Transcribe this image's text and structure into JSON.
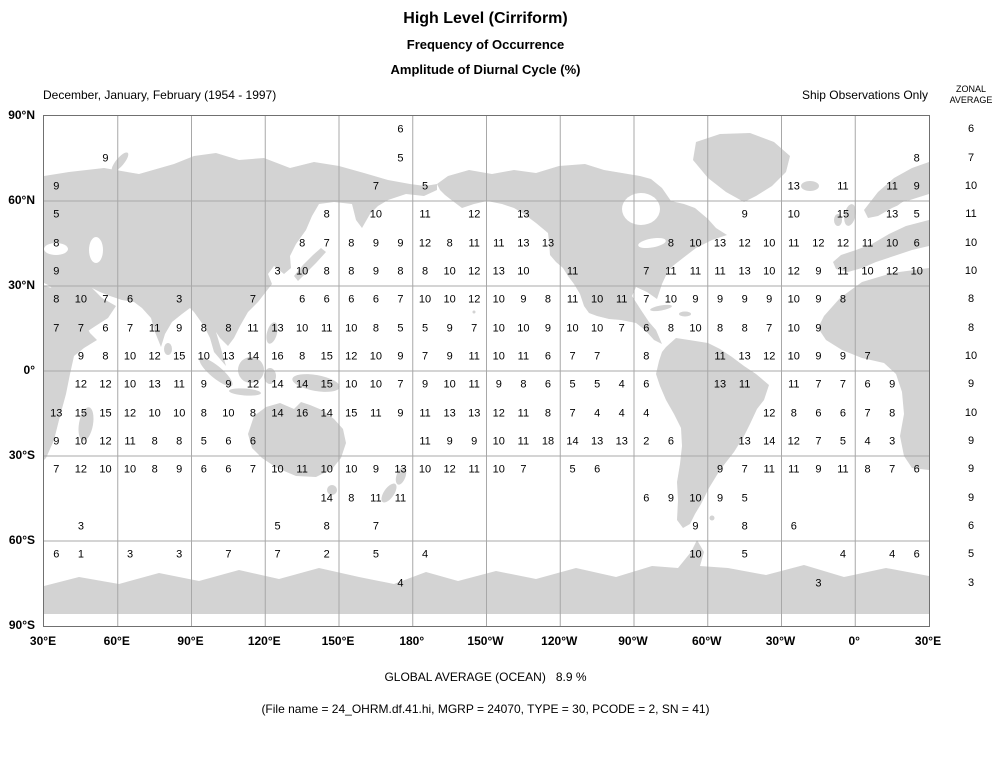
{
  "header": {
    "title": "High Level (Cirriform)",
    "subtitle1": "Frequency of Occurrence",
    "subtitle2": "Amplitude of Diurnal Cycle (%)",
    "season_label": "December, January, February (1954 - 1997)",
    "source_label": "Ship Observations Only",
    "zonal_header_line1": "ZONAL",
    "zonal_header_line2": "AVERAGE"
  },
  "footer": {
    "global_average": "GLOBAL AVERAGE (OCEAN)   8.9 %",
    "file_info": "(File name = 24_OHRM.df.41.hi, MGRP = 24070, TYPE = 30, PCODE = 2, SN = 41)"
  },
  "colors": {
    "land": "#d3d3d3",
    "grid": "#a8a8a8",
    "border": "#707070",
    "text": "#000000"
  },
  "chart_data": {
    "type": "heatmap",
    "title": "High Level (Cirriform) - Amplitude of Diurnal Cycle (%)",
    "subtitle": "Frequency of Occurrence, December, January, February (1954 - 1997), Ship Observations Only",
    "legend_position": "right-column-zonal-average",
    "grid_on": true,
    "x_ticks": [
      "30°E",
      "60°E",
      "90°E",
      "120°E",
      "150°E",
      "180°",
      "150°W",
      "120°W",
      "90°W",
      "60°W",
      "30°W",
      "0°",
      "30°E"
    ],
    "y_ticks": [
      "90°N",
      "60°N",
      "30°N",
      "0°",
      "30°S",
      "60°S",
      "90°S"
    ],
    "n_cols": 36,
    "lon_start_deg_east": 30,
    "lon_cell_deg": 10,
    "lat_cell_deg": 10,
    "global_average_ocean_pct": 8.9,
    "rows": [
      {
        "lat": "85°N",
        "zonal_average": "6",
        "cells": {
          "14": "6"
        }
      },
      {
        "lat": "75°N",
        "zonal_average": "7",
        "cells": {
          "2": "9",
          "14": "5",
          "35": "8"
        }
      },
      {
        "lat": "65°N",
        "zonal_average": "10",
        "cells": {
          "0": "9",
          "13": "7",
          "15": "5",
          "30": "13",
          "32": "11",
          "34": "11",
          "35": "9"
        }
      },
      {
        "lat": "55°N",
        "zonal_average": "11",
        "cells": {
          "0": "5",
          "11": "8",
          "13": "10",
          "15": "11",
          "17": "12",
          "19": "13",
          "28": "9",
          "30": "10",
          "32": "15",
          "34": "13",
          "35": "5"
        }
      },
      {
        "lat": "45°N",
        "zonal_average": "10",
        "cells": {
          "0": "8",
          "10": "8",
          "11": "7",
          "12": "8",
          "13": "9",
          "14": "9",
          "15": "12",
          "16": "8",
          "17": "11",
          "18": "11",
          "19": "13",
          "20": "13",
          "25": "8",
          "26": "10",
          "27": "13",
          "28": "12",
          "29": "10",
          "30": "11",
          "31": "12",
          "32": "12",
          "33": "11",
          "34": "10",
          "35": "6"
        }
      },
      {
        "lat": "35°N",
        "zonal_average": "10",
        "cells": {
          "0": "9",
          "9": "3",
          "10": "10",
          "11": "8",
          "12": "8",
          "13": "9",
          "14": "8",
          "15": "8",
          "16": "10",
          "17": "12",
          "18": "13",
          "19": "10",
          "21": "11",
          "24": "7",
          "25": "11",
          "26": "11",
          "27": "11",
          "28": "13",
          "29": "10",
          "30": "12",
          "31": "9",
          "32": "11",
          "33": "10",
          "34": "12",
          "35": "10"
        }
      },
      {
        "lat": "25°N",
        "zonal_average": "8",
        "cells": {
          "0": "8",
          "1": "10",
          "2": "7",
          "3": "6",
          "5": "3",
          "8": "7",
          "10": "6",
          "11": "6",
          "12": "6",
          "13": "6",
          "14": "7",
          "15": "10",
          "16": "10",
          "17": "12",
          "18": "10",
          "19": "9",
          "20": "8",
          "21": "11",
          "22": "10",
          "23": "11",
          "24": "7",
          "25": "10",
          "26": "9",
          "27": "9",
          "28": "9",
          "29": "9",
          "30": "10",
          "31": "9",
          "32": "8"
        }
      },
      {
        "lat": "15°N",
        "zonal_average": "8",
        "cells": {
          "0": "7",
          "1": "7",
          "2": "6",
          "3": "7",
          "4": "11",
          "5": "9",
          "6": "8",
          "7": "8",
          "8": "11",
          "9": "13",
          "10": "10",
          "11": "11",
          "12": "10",
          "13": "8",
          "14": "5",
          "15": "5",
          "16": "9",
          "17": "7",
          "18": "10",
          "19": "10",
          "20": "9",
          "21": "10",
          "22": "10",
          "23": "7",
          "24": "6",
          "25": "8",
          "26": "10",
          "27": "8",
          "28": "8",
          "29": "7",
          "30": "10",
          "31": "9"
        }
      },
      {
        "lat": "5°N",
        "zonal_average": "10",
        "cells": {
          "1": "9",
          "2": "8",
          "3": "10",
          "4": "12",
          "5": "15",
          "6": "10",
          "7": "13",
          "8": "14",
          "9": "16",
          "10": "8",
          "11": "15",
          "12": "12",
          "13": "10",
          "14": "9",
          "15": "7",
          "16": "9",
          "17": "11",
          "18": "10",
          "19": "11",
          "20": "6",
          "21": "7",
          "22": "7",
          "24": "8",
          "27": "11",
          "28": "13",
          "29": "12",
          "30": "10",
          "31": "9",
          "32": "9",
          "33": "7"
        }
      },
      {
        "lat": "5°S",
        "zonal_average": "9",
        "cells": {
          "1": "12",
          "2": "12",
          "3": "10",
          "4": "13",
          "5": "11",
          "6": "9",
          "7": "9",
          "8": "12",
          "9": "14",
          "10": "14",
          "11": "15",
          "12": "10",
          "13": "10",
          "14": "7",
          "15": "9",
          "16": "10",
          "17": "11",
          "18": "9",
          "19": "8",
          "20": "6",
          "21": "5",
          "22": "5",
          "23": "4",
          "24": "6",
          "27": "13",
          "28": "11",
          "30": "11",
          "31": "7",
          "32": "7",
          "33": "6",
          "34": "9"
        }
      },
      {
        "lat": "15°S",
        "zonal_average": "10",
        "cells": {
          "0": "13",
          "1": "15",
          "2": "15",
          "3": "12",
          "4": "10",
          "5": "10",
          "6": "8",
          "7": "10",
          "8": "8",
          "9": "14",
          "10": "16",
          "11": "14",
          "12": "15",
          "13": "11",
          "14": "9",
          "15": "11",
          "16": "13",
          "17": "13",
          "18": "12",
          "19": "11",
          "20": "8",
          "21": "7",
          "22": "4",
          "23": "4",
          "24": "4",
          "29": "12",
          "30": "8",
          "31": "6",
          "32": "6",
          "33": "7",
          "34": "8"
        }
      },
      {
        "lat": "25°S",
        "zonal_average": "9",
        "cells": {
          "0": "9",
          "1": "10",
          "2": "12",
          "3": "11",
          "4": "8",
          "5": "8",
          "6": "5",
          "7": "6",
          "8": "6",
          "15": "11",
          "16": "9",
          "17": "9",
          "18": "10",
          "19": "11",
          "20": "18",
          "21": "14",
          "22": "13",
          "23": "13",
          "24": "2",
          "25": "6",
          "28": "13",
          "29": "14",
          "30": "12",
          "31": "7",
          "32": "5",
          "33": "4",
          "34": "3"
        }
      },
      {
        "lat": "35°S",
        "zonal_average": "9",
        "cells": {
          "0": "7",
          "1": "12",
          "2": "10",
          "3": "10",
          "4": "8",
          "5": "9",
          "6": "6",
          "7": "6",
          "8": "7",
          "9": "10",
          "10": "11",
          "11": "10",
          "12": "10",
          "13": "9",
          "14": "13",
          "15": "10",
          "16": "12",
          "17": "11",
          "18": "10",
          "19": "7",
          "21": "5",
          "22": "6",
          "27": "9",
          "28": "7",
          "29": "11",
          "30": "11",
          "31": "9",
          "32": "11",
          "33": "8",
          "34": "7",
          "35": "6"
        }
      },
      {
        "lat": "45°S",
        "zonal_average": "9",
        "cells": {
          "11": "14",
          "12": "8",
          "13": "11",
          "14": "11",
          "24": "6",
          "25": "9",
          "26": "10",
          "27": "9",
          "28": "5"
        }
      },
      {
        "lat": "55°S",
        "zonal_average": "6",
        "cells": {
          "1": "3",
          "9": "5",
          "11": "8",
          "13": "7",
          "26": "9",
          "28": "8",
          "30": "6"
        }
      },
      {
        "lat": "65°S",
        "zonal_average": "5",
        "cells": {
          "0": "6",
          "1": "1",
          "3": "3",
          "5": "3",
          "7": "7",
          "9": "7",
          "11": "2",
          "13": "5",
          "15": "4",
          "26": "10",
          "28": "5",
          "32": "4",
          "34": "4",
          "35": "6"
        }
      },
      {
        "lat": "75°S",
        "zonal_average": "3",
        "cells": {
          "14": "4",
          "31": "3"
        }
      }
    ]
  }
}
